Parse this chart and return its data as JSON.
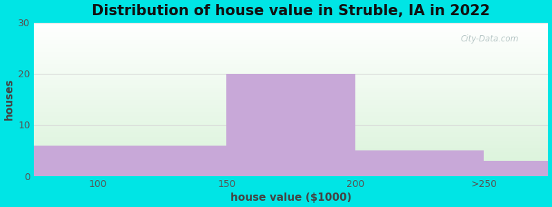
{
  "title": "Distribution of house value in Struble, IA in 2022",
  "xlabel": "house value ($1000)",
  "ylabel": "houses",
  "bar_edges": [
    75,
    125,
    150,
    200,
    250,
    275
  ],
  "bar_heights": [
    6,
    6,
    20,
    5,
    3
  ],
  "xtick_positions": [
    100,
    150,
    200,
    250
  ],
  "xtick_labels": [
    "100",
    "150",
    "200",
    ">250"
  ],
  "bar_color": "#c8a8d8",
  "ylim": [
    0,
    30
  ],
  "yticks": [
    0,
    10,
    20,
    30
  ],
  "xlim": [
    75,
    275
  ],
  "background_outer": "#00e5e5",
  "grid_color": "#d8d8d8",
  "title_fontsize": 15,
  "axis_label_fontsize": 11,
  "tick_fontsize": 10,
  "watermark_text": "City-Data.com"
}
